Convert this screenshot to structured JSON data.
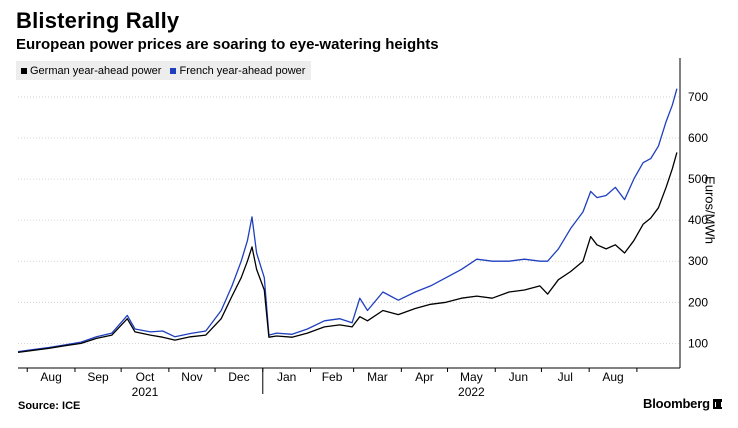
{
  "header": {
    "title": "Blistering Rally",
    "subtitle": "European power prices are soaring to eye-watering heights"
  },
  "footer": {
    "source": "Source: ICE",
    "brand": "Bloomberg"
  },
  "chart_data": {
    "type": "line",
    "xlabel": "",
    "ylabel": "Euros/MWh",
    "ylim": [
      40,
      790
    ],
    "yticks": [
      100,
      200,
      300,
      400,
      500,
      600,
      700
    ],
    "grid": "horizontal dotted",
    "legend_placement": "top-left",
    "month_labels": [
      "Aug",
      "Sep",
      "Oct",
      "Nov",
      "Dec",
      "Jan",
      "Feb",
      "Mar",
      "Apr",
      "May",
      "Jun",
      "Jul",
      "Aug"
    ],
    "year_labels": [
      "2021",
      "2022"
    ],
    "series": [
      {
        "name": "German year-ahead power",
        "color": "#000000",
        "points": [
          [
            "2021-07-26",
            78
          ],
          [
            "2021-08-05",
            83
          ],
          [
            "2021-08-15",
            88
          ],
          [
            "2021-08-25",
            94
          ],
          [
            "2021-09-05",
            100
          ],
          [
            "2021-09-15",
            112
          ],
          [
            "2021-09-25",
            120
          ],
          [
            "2021-10-05",
            160
          ],
          [
            "2021-10-10",
            128
          ],
          [
            "2021-10-20",
            120
          ],
          [
            "2021-10-28",
            115
          ],
          [
            "2021-11-05",
            108
          ],
          [
            "2021-11-15",
            116
          ],
          [
            "2021-11-25",
            120
          ],
          [
            "2021-12-05",
            160
          ],
          [
            "2021-12-12",
            215
          ],
          [
            "2021-12-18",
            260
          ],
          [
            "2021-12-22",
            300
          ],
          [
            "2021-12-25",
            335
          ],
          [
            "2021-12-28",
            280
          ],
          [
            "2022-01-02",
            230
          ],
          [
            "2022-01-05",
            115
          ],
          [
            "2022-01-10",
            118
          ],
          [
            "2022-01-20",
            115
          ],
          [
            "2022-01-30",
            125
          ],
          [
            "2022-02-10",
            140
          ],
          [
            "2022-02-20",
            145
          ],
          [
            "2022-02-28",
            140
          ],
          [
            "2022-03-05",
            165
          ],
          [
            "2022-03-10",
            155
          ],
          [
            "2022-03-20",
            180
          ],
          [
            "2022-03-30",
            170
          ],
          [
            "2022-04-10",
            185
          ],
          [
            "2022-04-20",
            195
          ],
          [
            "2022-04-30",
            200
          ],
          [
            "2022-05-10",
            210
          ],
          [
            "2022-05-20",
            215
          ],
          [
            "2022-05-30",
            210
          ],
          [
            "2022-06-10",
            225
          ],
          [
            "2022-06-20",
            230
          ],
          [
            "2022-06-30",
            240
          ],
          [
            "2022-07-05",
            220
          ],
          [
            "2022-07-12",
            255
          ],
          [
            "2022-07-20",
            275
          ],
          [
            "2022-07-28",
            300
          ],
          [
            "2022-08-02",
            360
          ],
          [
            "2022-08-06",
            340
          ],
          [
            "2022-08-12",
            330
          ],
          [
            "2022-08-18",
            340
          ],
          [
            "2022-08-24",
            320
          ],
          [
            "2022-08-30",
            350
          ],
          [
            "2022-09-05",
            390
          ],
          [
            "2022-09-10",
            405
          ],
          [
            "2022-09-15",
            430
          ],
          [
            "2022-09-20",
            480
          ],
          [
            "2022-09-24",
            525
          ],
          [
            "2022-09-27",
            565
          ]
        ]
      },
      {
        "name": "French year-ahead power",
        "color": "#1f3fbf",
        "points": [
          [
            "2021-07-26",
            80
          ],
          [
            "2021-08-05",
            85
          ],
          [
            "2021-08-15",
            90
          ],
          [
            "2021-08-25",
            96
          ],
          [
            "2021-09-05",
            103
          ],
          [
            "2021-09-15",
            116
          ],
          [
            "2021-09-25",
            125
          ],
          [
            "2021-10-05",
            168
          ],
          [
            "2021-10-10",
            135
          ],
          [
            "2021-10-20",
            128
          ],
          [
            "2021-10-28",
            130
          ],
          [
            "2021-11-05",
            116
          ],
          [
            "2021-11-15",
            124
          ],
          [
            "2021-11-25",
            130
          ],
          [
            "2021-12-05",
            180
          ],
          [
            "2021-12-12",
            240
          ],
          [
            "2021-12-18",
            300
          ],
          [
            "2021-12-22",
            350
          ],
          [
            "2021-12-25",
            408
          ],
          [
            "2021-12-28",
            320
          ],
          [
            "2022-01-02",
            260
          ],
          [
            "2022-01-05",
            120
          ],
          [
            "2022-01-10",
            125
          ],
          [
            "2022-01-20",
            122
          ],
          [
            "2022-01-30",
            135
          ],
          [
            "2022-02-10",
            155
          ],
          [
            "2022-02-20",
            160
          ],
          [
            "2022-02-28",
            150
          ],
          [
            "2022-03-05",
            210
          ],
          [
            "2022-03-10",
            180
          ],
          [
            "2022-03-20",
            225
          ],
          [
            "2022-03-30",
            205
          ],
          [
            "2022-04-10",
            225
          ],
          [
            "2022-04-20",
            240
          ],
          [
            "2022-04-30",
            260
          ],
          [
            "2022-05-10",
            280
          ],
          [
            "2022-05-20",
            305
          ],
          [
            "2022-05-30",
            300
          ],
          [
            "2022-06-10",
            300
          ],
          [
            "2022-06-20",
            305
          ],
          [
            "2022-06-30",
            300
          ],
          [
            "2022-07-05",
            300
          ],
          [
            "2022-07-12",
            330
          ],
          [
            "2022-07-20",
            380
          ],
          [
            "2022-07-28",
            420
          ],
          [
            "2022-08-02",
            470
          ],
          [
            "2022-08-06",
            455
          ],
          [
            "2022-08-12",
            460
          ],
          [
            "2022-08-18",
            480
          ],
          [
            "2022-08-24",
            450
          ],
          [
            "2022-08-30",
            500
          ],
          [
            "2022-09-05",
            540
          ],
          [
            "2022-09-10",
            550
          ],
          [
            "2022-09-15",
            580
          ],
          [
            "2022-09-20",
            640
          ],
          [
            "2022-09-24",
            680
          ],
          [
            "2022-09-27",
            720
          ]
        ]
      }
    ]
  }
}
